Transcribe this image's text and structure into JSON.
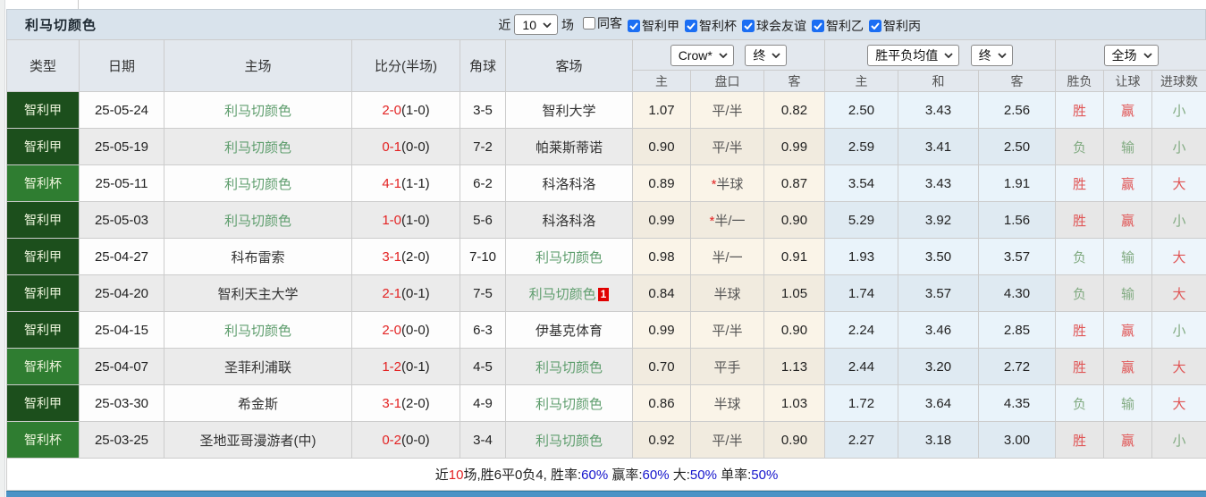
{
  "title": "利马切颜色",
  "colors": {
    "league_green": "#1c4f1c",
    "cup_green": "#2f7d31",
    "win_red": "#e05555",
    "lose_green": "#82ab82",
    "score_red": "#e32222",
    "team_green": "#5f9e6e",
    "footer_blue": "#1414cc",
    "bottom_bar_blue": "#4b93c6"
  },
  "filters": {
    "recent_label": "近",
    "recent_value": "10",
    "games_label": "场",
    "checkboxes": [
      {
        "label": "同客",
        "checked": false
      },
      {
        "label": "智利甲",
        "checked": true
      },
      {
        "label": "智利杯",
        "checked": true
      },
      {
        "label": "球会友谊",
        "checked": true
      },
      {
        "label": "智利乙",
        "checked": true
      },
      {
        "label": "智利丙",
        "checked": true
      }
    ]
  },
  "table": {
    "left_headers": [
      "类型",
      "日期",
      "主场",
      "比分(半场)",
      "角球",
      "客场"
    ],
    "selects": {
      "odds_company": "Crow*",
      "odds_time": "终",
      "avg_company": "胜平负均值",
      "avg_time": "终",
      "scope": "全场"
    },
    "sub_headers": [
      "主",
      "盘口",
      "客",
      "主",
      "和",
      "客",
      "胜负",
      "让球",
      "进球数"
    ],
    "rows": [
      {
        "comp": "智利甲",
        "date": "25-05-24",
        "home": "利马切颜色",
        "score": "2-0",
        "half": "(1-0)",
        "corners": "3-5",
        "away": "智利大学",
        "away_badge": "",
        "odds": [
          "1.07",
          "平/半",
          "0.82"
        ],
        "avg": [
          "2.50",
          "3.43",
          "2.56"
        ],
        "results": [
          "胜",
          "赢",
          "小"
        ]
      },
      {
        "comp": "智利甲",
        "date": "25-05-19",
        "home": "利马切颜色",
        "score": "0-1",
        "half": "(0-0)",
        "corners": "7-2",
        "away": "帕莱斯蒂诺",
        "away_badge": "",
        "odds": [
          "0.90",
          "平/半",
          "0.99"
        ],
        "avg": [
          "2.59",
          "3.41",
          "2.50"
        ],
        "results": [
          "负",
          "输",
          "小"
        ]
      },
      {
        "comp": "智利杯",
        "date": "25-05-11",
        "home": "利马切颜色",
        "score": "4-1",
        "half": "(1-1)",
        "corners": "6-2",
        "away": "科洛科洛",
        "away_badge": "",
        "odds": [
          "0.89",
          "*半球",
          "0.87"
        ],
        "avg": [
          "3.54",
          "3.43",
          "1.91"
        ],
        "results": [
          "胜",
          "赢",
          "大"
        ]
      },
      {
        "comp": "智利甲",
        "date": "25-05-03",
        "home": "利马切颜色",
        "score": "1-0",
        "half": "(1-0)",
        "corners": "5-6",
        "away": "科洛科洛",
        "away_badge": "",
        "odds": [
          "0.99",
          "*半/一",
          "0.90"
        ],
        "avg": [
          "5.29",
          "3.92",
          "1.56"
        ],
        "results": [
          "胜",
          "赢",
          "小"
        ]
      },
      {
        "comp": "智利甲",
        "date": "25-04-27",
        "home": "科布雷索",
        "score": "3-1",
        "half": "(2-0)",
        "corners": "7-10",
        "away": "利马切颜色",
        "away_badge": "",
        "odds": [
          "0.98",
          "半/一",
          "0.91"
        ],
        "avg": [
          "1.93",
          "3.50",
          "3.57"
        ],
        "results": [
          "负",
          "输",
          "大"
        ]
      },
      {
        "comp": "智利甲",
        "date": "25-04-20",
        "home": "智利天主大学",
        "score": "2-1",
        "half": "(0-1)",
        "corners": "7-5",
        "away": "利马切颜色",
        "away_badge": "1",
        "odds": [
          "0.84",
          "半球",
          "1.05"
        ],
        "avg": [
          "1.74",
          "3.57",
          "4.30"
        ],
        "results": [
          "负",
          "输",
          "大"
        ]
      },
      {
        "comp": "智利甲",
        "date": "25-04-15",
        "home": "利马切颜色",
        "score": "2-0",
        "half": "(0-0)",
        "corners": "6-3",
        "away": "伊基克体育",
        "away_badge": "",
        "odds": [
          "0.99",
          "平/半",
          "0.90"
        ],
        "avg": [
          "2.24",
          "3.46",
          "2.85"
        ],
        "results": [
          "胜",
          "赢",
          "小"
        ]
      },
      {
        "comp": "智利杯",
        "date": "25-04-07",
        "home": "圣菲利浦联",
        "score": "1-2",
        "half": "(0-1)",
        "corners": "4-5",
        "away": "利马切颜色",
        "away_badge": "",
        "odds": [
          "0.70",
          "平手",
          "1.13"
        ],
        "avg": [
          "2.44",
          "3.20",
          "2.72"
        ],
        "results": [
          "胜",
          "赢",
          "大"
        ]
      },
      {
        "comp": "智利甲",
        "date": "25-03-30",
        "home": "希金斯",
        "score": "3-1",
        "half": "(2-0)",
        "corners": "4-9",
        "away": "利马切颜色",
        "away_badge": "",
        "odds": [
          "0.86",
          "半球",
          "1.03"
        ],
        "avg": [
          "1.72",
          "3.64",
          "4.35"
        ],
        "results": [
          "负",
          "输",
          "大"
        ]
      },
      {
        "comp": "智利杯",
        "date": "25-03-25",
        "home": "圣地亚哥漫游者(中)",
        "score": "0-2",
        "half": "(0-0)",
        "corners": "3-4",
        "away": "利马切颜色",
        "away_badge": "",
        "odds": [
          "0.92",
          "平/半",
          "0.90"
        ],
        "avg": [
          "2.27",
          "3.18",
          "3.00"
        ],
        "results": [
          "胜",
          "赢",
          "小"
        ]
      }
    ]
  },
  "footer": {
    "segments": [
      {
        "t": "近",
        "c": "dark"
      },
      {
        "t": "10",
        "c": "red"
      },
      {
        "t": "场,胜6平0负4, ",
        "c": "dark"
      },
      {
        "t": "胜率:",
        "c": "dark"
      },
      {
        "t": "60%",
        "c": "blue"
      },
      {
        "t": " 赢率:",
        "c": "dark"
      },
      {
        "t": "60%",
        "c": "blue"
      },
      {
        "t": " 大:",
        "c": "dark"
      },
      {
        "t": "50%",
        "c": "blue"
      },
      {
        "t": " 单率:",
        "c": "dark"
      },
      {
        "t": "50%",
        "c": "blue"
      }
    ]
  }
}
